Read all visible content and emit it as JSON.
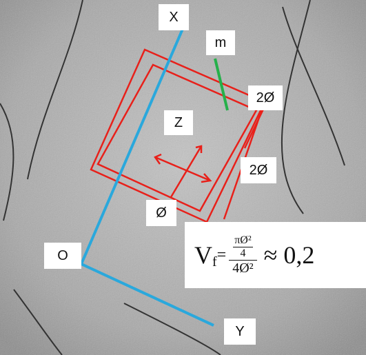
{
  "labels": {
    "x_axis": "X",
    "m": "m",
    "top_dim": "2Ø",
    "z": "Z",
    "side_dim": "2Ø",
    "bottom_dim": "Ø",
    "origin": "O",
    "y_axis": "Y"
  },
  "formula": {
    "symbol": "V",
    "subscript": "f",
    "equals": "=",
    "inner_numerator": "πØ²",
    "inner_denominator": "4",
    "denominator": "4Ø²",
    "approx": "≈ 0,2"
  }
}
